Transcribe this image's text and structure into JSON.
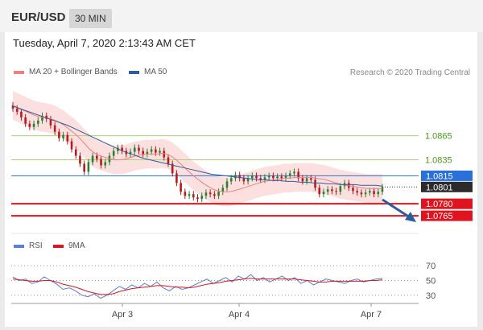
{
  "header": {
    "symbol": "EUR/USD",
    "timeframe": "30 MIN"
  },
  "timestamp": "Tuesday, April 7, 2020 2:13:43 AM CET",
  "legend": {
    "ma20_label": "MA 20 + Bollinger Bands",
    "ma50_label": "MA 50",
    "rsi_label": "RSI",
    "ma9_label": "9MA",
    "attribution": "Research © 2020 Trading Central"
  },
  "colors": {
    "ma20": "#f08080",
    "ma50": "#2c5d9e",
    "band": "#fbd5d5",
    "up_candle": "#2e7d32",
    "down_candle": "#b71c1c",
    "level_green": "#a8d37a",
    "level_blue": "#2970d8",
    "level_red": "#e0141e",
    "rsi": "#5b7fd6",
    "ma9": "#e0141e",
    "arrow": "#2c5d9e"
  },
  "chart_data": [
    {
      "type": "candlestick",
      "x_ticks": [
        "Apr 3",
        "Apr 4",
        "Apr 7"
      ],
      "ylim": [
        1.075,
        1.092
      ],
      "levels": [
        {
          "value": 1.0865,
          "label": "1.0865",
          "kind": "resistance",
          "color": "green"
        },
        {
          "value": 1.0835,
          "label": "1.0835",
          "kind": "resistance",
          "color": "green"
        },
        {
          "value": 1.0815,
          "label": "1.0815",
          "kind": "pivot",
          "color": "blue"
        },
        {
          "value": 1.078,
          "label": "1.0780",
          "kind": "support",
          "color": "red"
        },
        {
          "value": 1.0765,
          "label": "1.0765",
          "kind": "support",
          "color": "red"
        }
      ],
      "last_price": {
        "value": 1.0801,
        "label": "1.0801"
      },
      "close": [
        1.0899,
        1.0895,
        1.0888,
        1.088,
        1.0876,
        1.088,
        1.0884,
        1.089,
        1.0886,
        1.0878,
        1.087,
        1.0862,
        1.0866,
        1.0858,
        1.0848,
        1.084,
        1.083,
        1.082,
        1.0832,
        1.084,
        1.0836,
        1.0828,
        1.0832,
        1.084,
        1.0846,
        1.085,
        1.0846,
        1.0842,
        1.0845,
        1.085,
        1.0846,
        1.0842,
        1.0845,
        1.0848,
        1.0844,
        1.0846,
        1.0838,
        1.083,
        1.0818,
        1.0806,
        1.0795,
        1.079,
        1.0792,
        1.0788,
        1.0786,
        1.079,
        1.0794,
        1.0792,
        1.079,
        1.0795,
        1.08,
        1.0808,
        1.0812,
        1.0816,
        1.0812,
        1.0808,
        1.0812,
        1.0815,
        1.0812,
        1.081,
        1.0813,
        1.0815,
        1.0812,
        1.0814,
        1.0812,
        1.0815,
        1.0818,
        1.082,
        1.0812,
        1.0808,
        1.0812,
        1.081,
        1.08,
        1.0792,
        1.0795,
        1.0798,
        1.0796,
        1.0795,
        1.0802,
        1.0806,
        1.08,
        1.0796,
        1.0794,
        1.0792,
        1.0794,
        1.0796,
        1.0792,
        1.0795,
        1.0801
      ],
      "ma20": [
        1.0903,
        1.09,
        1.0897,
        1.0894,
        1.0891,
        1.0889,
        1.0888,
        1.0887,
        1.0885,
        1.0882,
        1.0878,
        1.0873,
        1.0868,
        1.0862,
        1.0855,
        1.0848,
        1.0843,
        1.084,
        1.0838,
        1.0836,
        1.0835,
        1.0835,
        1.0836,
        1.0838,
        1.084,
        1.0841,
        1.0842,
        1.0842,
        1.0842,
        1.0843,
        1.0842,
        1.0839,
        1.0834,
        1.0828,
        1.0822,
        1.0816,
        1.0811,
        1.0806,
        1.0802,
        1.0798,
        1.0796,
        1.0795,
        1.0795,
        1.0796,
        1.0798,
        1.08,
        1.0802,
        1.0804,
        1.0806,
        1.0808,
        1.0809,
        1.081,
        1.0811,
        1.0812,
        1.0812,
        1.0813,
        1.0813,
        1.0813,
        1.0813,
        1.0812,
        1.0811,
        1.081,
        1.0808,
        1.0806,
        1.0804,
        1.0803,
        1.0802,
        1.0801,
        1.08,
        1.0799,
        1.0799,
        1.0799,
        1.0799
      ],
      "ma50": [
        1.0902,
        1.0899,
        1.0896,
        1.0893,
        1.089,
        1.0887,
        1.0884,
        1.0881,
        1.0878,
        1.0874,
        1.087,
        1.0866,
        1.0862,
        1.0858,
        1.0854,
        1.085,
        1.0846,
        1.0843,
        1.084,
        1.0837,
        1.0835,
        1.0833,
        1.0831,
        1.0829,
        1.0827,
        1.0825,
        1.0823,
        1.0821,
        1.0819,
        1.0817,
        1.0816,
        1.0815,
        1.0814,
        1.0813,
        1.0812,
        1.0811,
        1.081,
        1.081,
        1.0809,
        1.0809,
        1.0808,
        1.0808,
        1.0807,
        1.0807,
        1.0806,
        1.0806,
        1.0805,
        1.0805,
        1.0804,
        1.0804,
        1.0804,
        1.0803,
        1.0803,
        1.0803,
        1.0802
      ]
    },
    {
      "type": "line",
      "ylim": [
        20,
        80
      ],
      "y_ticks": [
        70,
        50,
        30
      ],
      "series": [
        {
          "name": "RSI",
          "values": [
            55,
            50,
            52,
            46,
            48,
            55,
            50,
            45,
            38,
            40,
            36,
            30,
            28,
            32,
            26,
            30,
            36,
            42,
            38,
            44,
            40,
            46,
            42,
            48,
            40,
            36,
            42,
            38,
            40,
            44,
            48,
            52,
            46,
            50,
            54,
            48,
            56,
            52,
            58,
            50,
            54,
            48,
            52,
            56,
            50,
            54,
            46,
            50,
            44,
            48,
            52,
            50,
            48,
            46,
            50,
            52,
            48,
            50,
            52,
            53
          ]
        },
        {
          "name": "9MA",
          "values": [
            52,
            51,
            50,
            49,
            49,
            50,
            50,
            48,
            45,
            43,
            41,
            38,
            35,
            33,
            31,
            31,
            32,
            35,
            37,
            39,
            40,
            41,
            42,
            43,
            43,
            42,
            41,
            41,
            40,
            41,
            43,
            45,
            46,
            47,
            49,
            50,
            51,
            52,
            53,
            52,
            52,
            52,
            52,
            52,
            52,
            52,
            51,
            50,
            49,
            48,
            48,
            49,
            49,
            49,
            49,
            49,
            49,
            50,
            50,
            51
          ]
        }
      ]
    }
  ]
}
